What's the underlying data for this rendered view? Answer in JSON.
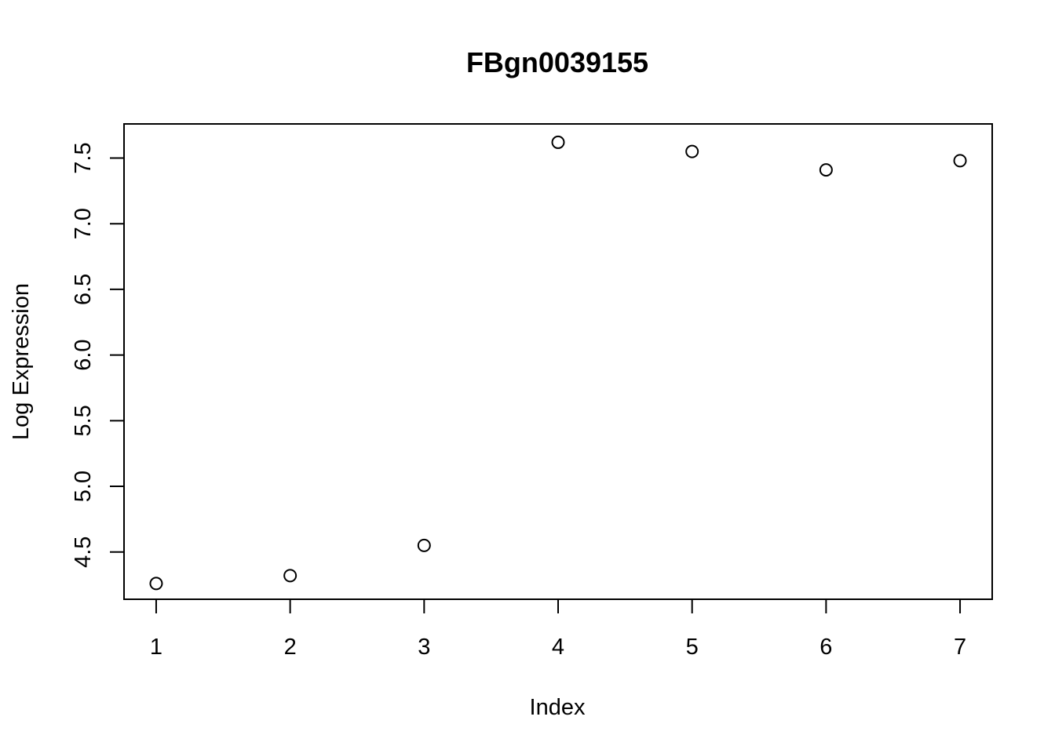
{
  "chart_data": {
    "type": "scatter",
    "title": "FBgn0039155",
    "xlabel": "Index",
    "ylabel": "Log Expression",
    "x": [
      1,
      2,
      3,
      4,
      5,
      6,
      7
    ],
    "y": [
      4.26,
      4.32,
      4.55,
      7.62,
      7.55,
      7.41,
      7.48
    ],
    "xlim": [
      0.76,
      7.24
    ],
    "ylim": [
      4.14,
      7.76
    ],
    "x_ticks": [
      "1",
      "2",
      "3",
      "4",
      "5",
      "6",
      "7"
    ],
    "y_ticks": [
      "4.5",
      "5.0",
      "5.5",
      "6.0",
      "6.5",
      "7.0",
      "7.5"
    ],
    "grid": false,
    "legend": "none",
    "marker": "open-circle",
    "colors": {
      "marker_stroke": "#000000",
      "axis": "#000000",
      "background": "#ffffff"
    }
  }
}
